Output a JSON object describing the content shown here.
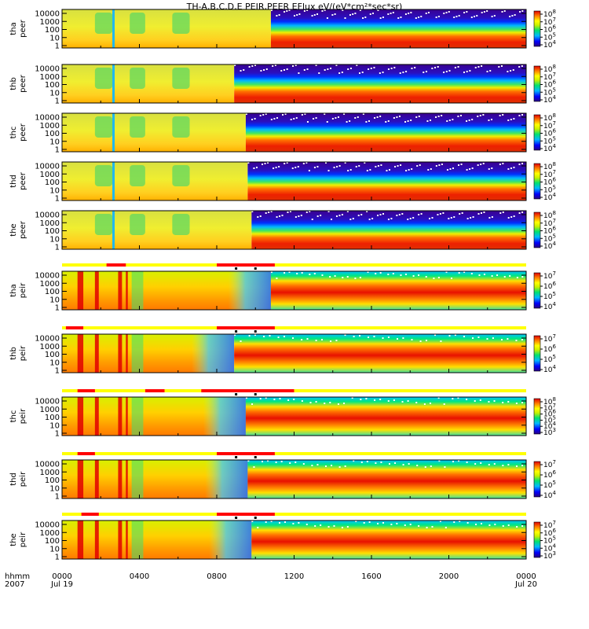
{
  "chart_data": {
    "type": "heatmap",
    "title": "TH-A,B,C,D,E PEIR,PEER EFlux eV/(eV*cm²*sec*sr)",
    "x_axis": {
      "unit_label": "hhmm",
      "year_label": "2007",
      "range_hours": [
        0,
        24
      ],
      "ticks": [
        {
          "hour": 0,
          "label": "0000",
          "sub": "Jul 19"
        },
        {
          "hour": 4,
          "label": "0400",
          "sub": ""
        },
        {
          "hour": 8,
          "label": "0800",
          "sub": ""
        },
        {
          "hour": 12,
          "label": "1200",
          "sub": ""
        },
        {
          "hour": 16,
          "label": "1600",
          "sub": ""
        },
        {
          "hour": 20,
          "label": "2000",
          "sub": ""
        },
        {
          "hour": 24,
          "label": "0000",
          "sub": "Jul 20"
        }
      ]
    },
    "y_ticks": [
      "10000",
      "1000",
      "100",
      "10",
      "1"
    ],
    "panels": [
      {
        "name": "tha-peer",
        "label": [
          "tha",
          "peer"
        ],
        "species": "electron",
        "onset_hour": 10.8,
        "colorbar_exponents": [
          8,
          7,
          6,
          5,
          4
        ],
        "state_bar": null
      },
      {
        "name": "thb-peer",
        "label": [
          "thb",
          "peer"
        ],
        "species": "electron",
        "onset_hour": 8.9,
        "colorbar_exponents": [
          8,
          7,
          6,
          5,
          4
        ],
        "state_bar": null
      },
      {
        "name": "thc-peer",
        "label": [
          "thc",
          "peer"
        ],
        "species": "electron",
        "onset_hour": 9.5,
        "colorbar_exponents": [
          8,
          7,
          6,
          5,
          4
        ],
        "state_bar": null
      },
      {
        "name": "thd-peer",
        "label": [
          "thd",
          "peer"
        ],
        "species": "electron",
        "onset_hour": 9.6,
        "colorbar_exponents": [
          8,
          7,
          6,
          5,
          4
        ],
        "state_bar": null
      },
      {
        "name": "the-peer",
        "label": [
          "the",
          "peer"
        ],
        "species": "electron",
        "onset_hour": 9.8,
        "colorbar_exponents": [
          8,
          7,
          6,
          5,
          4
        ],
        "state_bar": null
      },
      {
        "name": "tha-peir",
        "label": [
          "tha",
          "peir"
        ],
        "species": "ion",
        "onset_hour": 10.8,
        "colorbar_exponents": [
          7,
          6,
          5,
          4
        ],
        "state_bar": {
          "red": [
            [
              2.3,
              3.3
            ],
            [
              8.0,
              11.0
            ]
          ],
          "marks": [
            9.0,
            10.0
          ]
        }
      },
      {
        "name": "thb-peir",
        "label": [
          "thb",
          "peir"
        ],
        "species": "ion",
        "onset_hour": 8.9,
        "colorbar_exponents": [
          7,
          6,
          5,
          4
        ],
        "state_bar": {
          "red": [
            [
              0.2,
              1.1
            ],
            [
              8.0,
              11.0
            ]
          ],
          "marks": [
            9.0,
            10.0
          ]
        }
      },
      {
        "name": "thc-peir",
        "label": [
          "thc",
          "peir"
        ],
        "species": "ion",
        "onset_hour": 9.5,
        "colorbar_exponents": [
          8,
          7,
          6,
          5,
          4,
          3
        ],
        "state_bar": {
          "red": [
            [
              0.8,
              1.7
            ],
            [
              4.3,
              5.3
            ],
            [
              7.2,
              12.0
            ]
          ],
          "marks": [
            9.0,
            10.0
          ]
        }
      },
      {
        "name": "thd-peir",
        "label": [
          "thd",
          "peir"
        ],
        "species": "ion",
        "onset_hour": 9.6,
        "colorbar_exponents": [
          7,
          6,
          5,
          4
        ],
        "state_bar": {
          "red": [
            [
              0.8,
              1.7
            ],
            [
              8.0,
              11.0
            ]
          ],
          "marks": [
            9.0,
            10.0
          ]
        }
      },
      {
        "name": "the-peir",
        "label": [
          "the",
          "peir"
        ],
        "species": "ion",
        "onset_hour": 9.8,
        "colorbar_exponents": [
          7,
          6,
          5,
          4,
          3
        ],
        "state_bar": {
          "red": [
            [
              1.0,
              1.9
            ],
            [
              8.0,
              11.0
            ]
          ],
          "marks": [
            9.0,
            10.0
          ]
        }
      }
    ]
  }
}
